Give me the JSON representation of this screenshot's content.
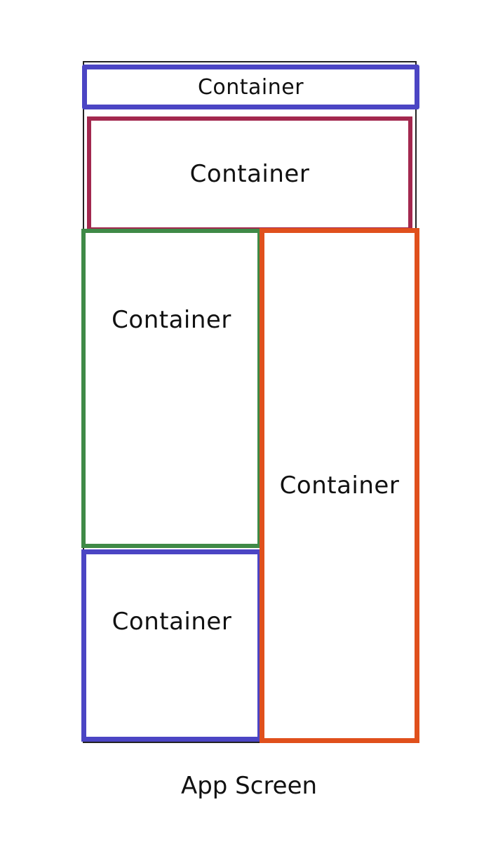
{
  "containers": {
    "header": {
      "label": "Container",
      "color": "#4b45c4"
    },
    "banner": {
      "label": "Container",
      "color": "#a3284f"
    },
    "left_top": {
      "label": "Container",
      "color": "#3f8a47"
    },
    "left_bottom": {
      "label": "Container",
      "color": "#4b45c4"
    },
    "right": {
      "label": "Container",
      "color": "#e0501c"
    }
  },
  "caption": "App Screen"
}
